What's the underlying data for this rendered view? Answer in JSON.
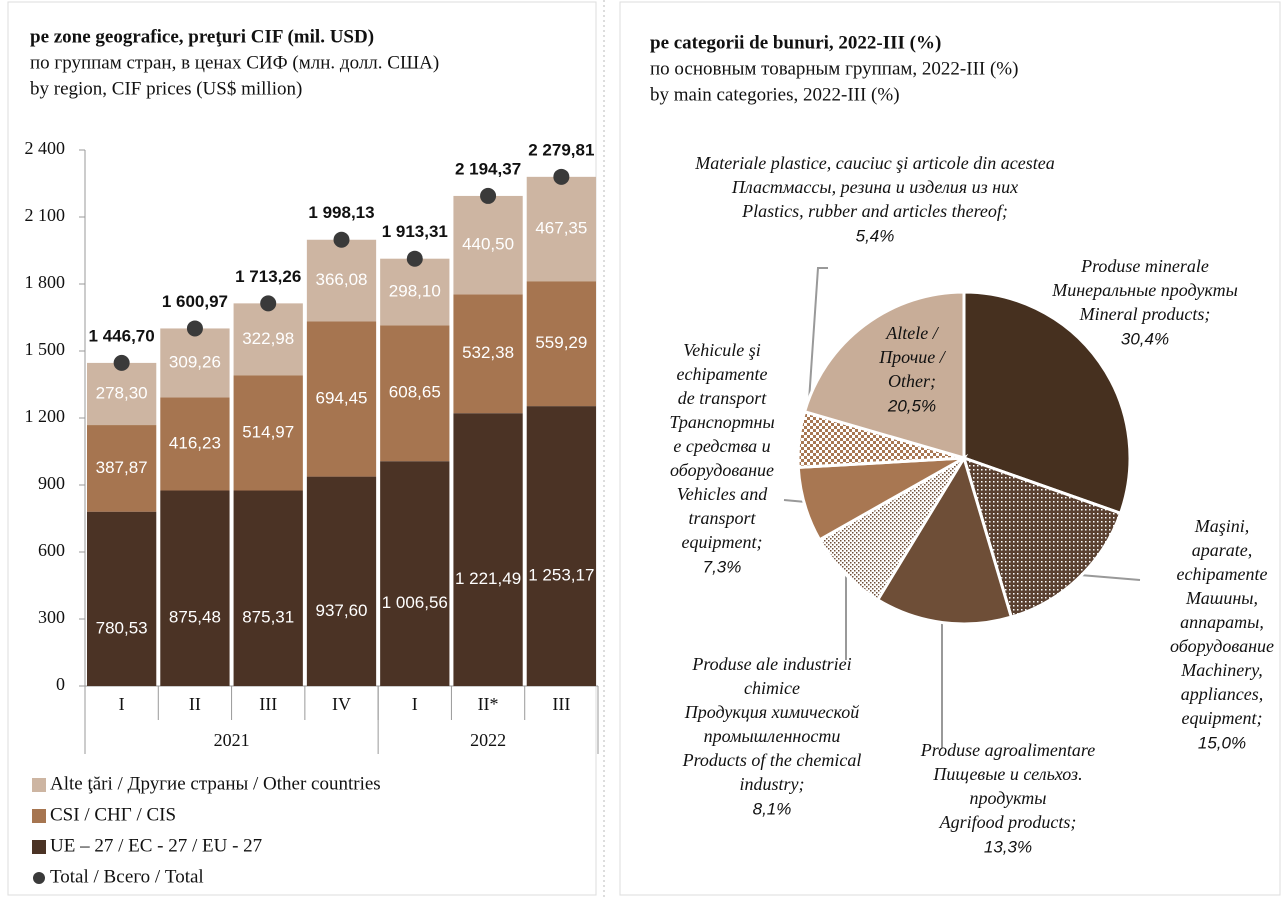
{
  "chart_data": [
    {
      "type": "stacked_bar",
      "title": "pe zone geografice, preţuri CIF (mil. USD)",
      "subtitle": [
        "по группам стран, в ценах СИФ (млн. долл. США)",
        "by region, CIF prices (US$ million)"
      ],
      "categories": [
        "I",
        "II",
        "III",
        "IV",
        "I",
        "II*",
        "III"
      ],
      "category_groups": [
        "2021",
        "2021",
        "2021",
        "2021",
        "2022",
        "2022",
        "2022"
      ],
      "ylim": [
        0,
        2400
      ],
      "yticks": [
        0,
        300,
        600,
        900,
        {
          "value": 1200,
          "label": "1 200"
        },
        {
          "value": 1500,
          "label": "1 500"
        },
        {
          "value": 1800,
          "label": "1 800"
        },
        {
          "value": 2100,
          "label": "2 100"
        },
        {
          "value": 2400,
          "label": "2 400"
        }
      ],
      "series": [
        {
          "name": "UE – 27 / ЕС - 27 / EU - 27",
          "color": "#4b3325",
          "values": [
            780.53,
            875.48,
            875.31,
            937.6,
            1006.56,
            1221.49,
            1253.17
          ],
          "value_labels": [
            "780,53",
            "875,48",
            "875,31",
            "937,60",
            "1 006,56",
            "1 221,49",
            "1 253,17"
          ]
        },
        {
          "name": "CSI / СНГ / CIS",
          "color": "#a67550",
          "values": [
            387.87,
            416.23,
            514.97,
            694.45,
            608.65,
            532.38,
            559.29
          ],
          "value_labels": [
            "387,87",
            "416,23",
            "514,97",
            "694,45",
            "608,65",
            "532,38",
            "559,29"
          ]
        },
        {
          "name": "Alte ţări / Другие страны / Other countries",
          "color": "#cdb5a2",
          "values": [
            278.3,
            309.26,
            322.98,
            366.08,
            298.1,
            440.5,
            467.35
          ],
          "value_labels": [
            "278,30",
            "309,26",
            "322,98",
            "366,08",
            "298,10",
            "440,50",
            "467,35"
          ]
        }
      ],
      "total": {
        "name": "Total / Всего / Total",
        "color": "#3a3a3a",
        "values": [
          1446.7,
          1600.97,
          1713.26,
          1998.13,
          1913.31,
          2194.37,
          2279.81
        ],
        "value_labels": [
          "1 446,70",
          "1 600,97",
          "1 713,26",
          "1 998,13",
          "1 913,31",
          "2 194,37",
          "2 279,81"
        ]
      }
    },
    {
      "type": "pie",
      "title": "pe categorii de bunuri, 2022-III (%)",
      "subtitle": [
        "по основным товарным группам, 2022-III (%)",
        "by main categories, 2022-III (%)"
      ],
      "labels": [
        [
          "Produse minerale",
          "Минеральные продукты",
          "Mineral products;"
        ],
        [
          "Maşini,",
          "aparate,",
          "echipamente",
          "Машины,",
          "аппараты,",
          "оборудование",
          "Machinery,",
          "appliances,",
          "equipment;"
        ],
        [
          "Produse agroalimentare",
          "Пищевые и сельхоз.",
          "продукты",
          "Agrifood products;"
        ],
        [
          "Produse ale industriei",
          "chimice",
          "Продукция химической",
          "промышленности",
          "Products of the chemical",
          "industry;"
        ],
        [
          "Vehicule şi",
          "echipamente",
          "de transport",
          "Транспортны",
          "е средства и",
          "оборудование",
          "Vehicles and",
          "transport",
          "equipment;"
        ],
        [
          "Materiale plastice, cauciuc şi articole din acestea",
          "Пластмассы, резина и изделия из них",
          "Plastics, rubber and articles thereof;"
        ],
        [
          "Altele /",
          "Прочие /",
          "Other;"
        ]
      ],
      "values": [
        30.4,
        15.0,
        13.3,
        8.1,
        7.3,
        5.4,
        20.5
      ],
      "value_labels": [
        "30,4%",
        "15,0%",
        "13,3%",
        "8,1%",
        "7,3%",
        "5,4%",
        "20,5%"
      ],
      "colors": [
        "#46301f",
        "#5a4030",
        "#6e4e37",
        "#ffffff",
        "#a87752",
        "#a87752",
        "#c8ad98"
      ],
      "fills": [
        "solid",
        "dotted",
        "solid",
        "hatched",
        "solid",
        "checkered",
        "solid"
      ]
    }
  ]
}
